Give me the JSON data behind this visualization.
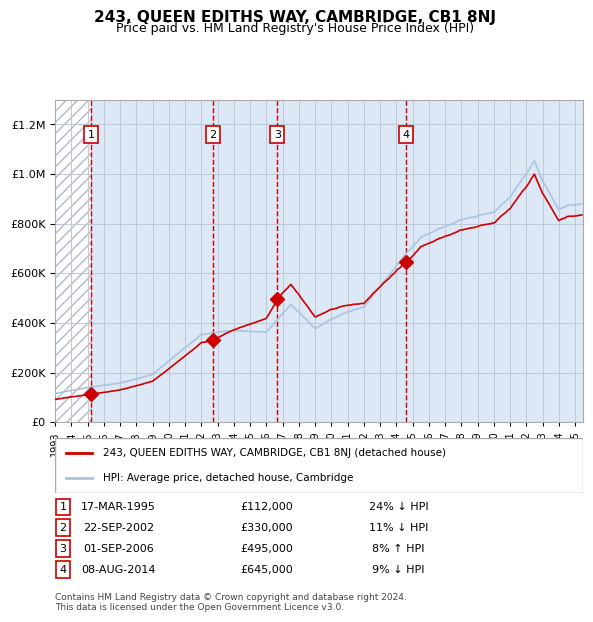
{
  "title": "243, QUEEN EDITHS WAY, CAMBRIDGE, CB1 8NJ",
  "subtitle": "Price paid vs. HM Land Registry's House Price Index (HPI)",
  "legend_property": "243, QUEEN EDITHS WAY, CAMBRIDGE, CB1 8NJ (detached house)",
  "legend_hpi": "HPI: Average price, detached house, Cambridge",
  "footer": "Contains HM Land Registry data © Crown copyright and database right 2024.\nThis data is licensed under the Open Government Licence v3.0.",
  "transactions": [
    {
      "num": 1,
      "date": "17-MAR-1995",
      "price": 112000,
      "hpi_diff": "24% ↓ HPI",
      "year": 1995.21
    },
    {
      "num": 2,
      "date": "22-SEP-2002",
      "price": 330000,
      "hpi_diff": "11% ↓ HPI",
      "year": 2002.72
    },
    {
      "num": 3,
      "date": "01-SEP-2006",
      "price": 495000,
      "hpi_diff": "8% ↑ HPI",
      "year": 2006.67
    },
    {
      "num": 4,
      "date": "08-AUG-2014",
      "price": 645000,
      "hpi_diff": "9% ↓ HPI",
      "year": 2014.6
    }
  ],
  "hpi_color": "#aac4e0",
  "price_color": "#cc0000",
  "marker_color": "#cc0000",
  "dashed_line_color": "#cc0000",
  "background_hatch_color": "#d0d8e8",
  "grid_color": "#c0c8d8",
  "ylim": [
    0,
    1300000
  ],
  "xlim_start": 1993.0,
  "xlim_end": 2025.5,
  "fig_width": 6.0,
  "fig_height": 6.2
}
